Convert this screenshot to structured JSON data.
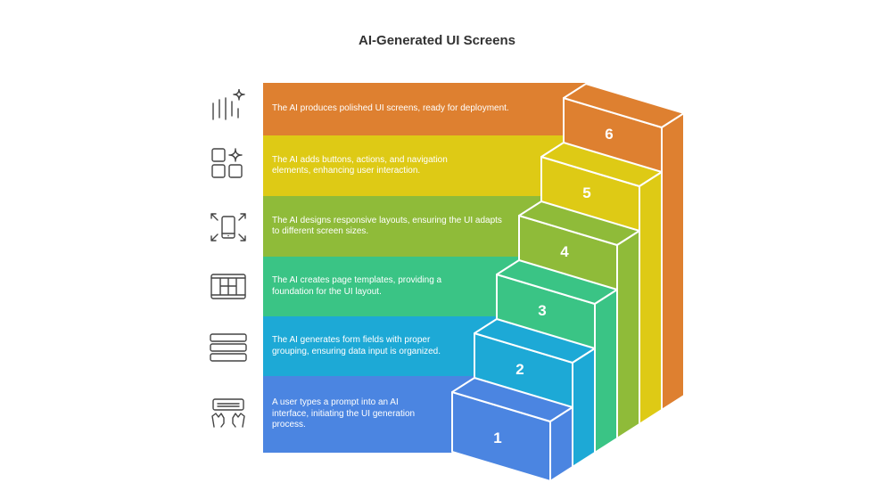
{
  "title": "AI-Generated UI Screens",
  "steps": [
    {
      "number": "1",
      "text": "A user types a prompt into an AI interface, initiating the UI generation process.",
      "color": "#4B85E1",
      "icon": "keyboard-hands-icon"
    },
    {
      "number": "2",
      "text": "The AI generates form fields with proper grouping, ensuring data input is organized.",
      "color": "#1DA9D6",
      "icon": "form-fields-icon"
    },
    {
      "number": "3",
      "text": "The AI creates page templates, providing a foundation for the UI layout.",
      "color": "#3AC485",
      "icon": "page-template-icon"
    },
    {
      "number": "4",
      "text": "The AI designs responsive layouts, ensuring the UI adapts to different screen sizes.",
      "color": "#8FBB39",
      "icon": "responsive-phone-icon"
    },
    {
      "number": "5",
      "text": "The AI adds buttons, actions, and navigation elements, enhancing user interaction.",
      "color": "#DECA15",
      "icon": "grid-sparkle-icon"
    },
    {
      "number": "6",
      "text": "The AI produces polished UI screens, ready for deployment.",
      "color": "#DE8030",
      "icon": "lines-sparkle-icon"
    }
  ]
}
